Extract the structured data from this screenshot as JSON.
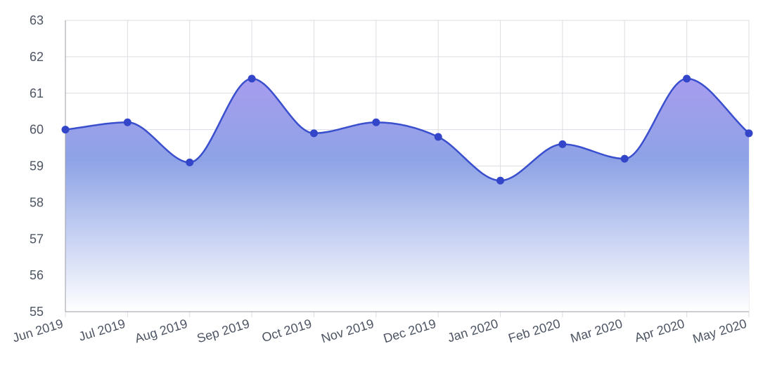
{
  "chart_data": {
    "type": "area",
    "categories": [
      "Jun 2019",
      "Jul 2019",
      "Aug 2019",
      "Sep 2019",
      "Oct 2019",
      "Nov 2019",
      "Dec 2019",
      "Jan 2020",
      "Feb 2020",
      "Mar 2020",
      "Apr 2020",
      "May 2020"
    ],
    "series": [
      {
        "values": [
          60.0,
          60.2,
          59.1,
          61.4,
          59.9,
          60.2,
          59.8,
          58.6,
          59.6,
          59.2,
          61.4,
          59.9
        ]
      }
    ],
    "y_ticks": [
      "63",
      "62",
      "61",
      "60",
      "59",
      "58",
      "57",
      "56",
      "55"
    ],
    "ylim": [
      55,
      63
    ],
    "grid": true,
    "legend": "none",
    "colors": {
      "line": "#3a4fce",
      "marker": "#3346c9",
      "fill_top": "#a79cee",
      "fill_mid": "#8ea3e6",
      "fill_bottom": "#ffffff"
    }
  }
}
